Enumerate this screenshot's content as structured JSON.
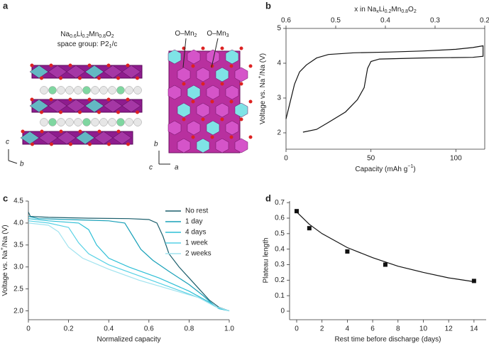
{
  "panel_a": {
    "label": "a",
    "formula": [
      {
        "t": "Na"
      },
      {
        "sub": "0.6"
      },
      {
        "t": "Li"
      },
      {
        "sub": "0.2"
      },
      {
        "t": "Mn"
      },
      {
        "sub": "0.8"
      },
      {
        "t": "O"
      },
      {
        "sub": "2"
      }
    ],
    "space_group": [
      {
        "t": "space group: P2"
      },
      {
        "sub": "1"
      },
      {
        "t": "/c"
      }
    ],
    "sites": [
      [
        {
          "t": "O–Mn"
        },
        {
          "sub": "2"
        }
      ],
      [
        {
          "t": "O–Mn"
        },
        {
          "sub": "3"
        }
      ]
    ],
    "axes_left": [
      "c",
      "b"
    ],
    "axes_right": [
      "b",
      "c",
      "a"
    ]
  },
  "chart_data": [
    {
      "type": "line",
      "label": "b",
      "xlabel": [
        {
          "t": "Capacity (mAh g"
        },
        {
          "sup": "−1"
        },
        {
          "t": ")"
        }
      ],
      "ylabel": [
        {
          "t": "Voltage vs. Na"
        },
        {
          "sup": "+"
        },
        {
          "t": "/Na (V)"
        }
      ],
      "x2label": [
        {
          "t": "x in Na"
        },
        {
          "sub": "x"
        },
        {
          "t": "Li"
        },
        {
          "sub": "0.2"
        },
        {
          "t": "Mn"
        },
        {
          "sub": "0.8"
        },
        {
          "t": "O"
        },
        {
          "sub": "2"
        }
      ],
      "xlim": [
        0,
        117
      ],
      "xticks": [
        0,
        50,
        100
      ],
      "ylim": [
        1.53,
        5
      ],
      "yticks": [
        2,
        3,
        4,
        5
      ],
      "x2lim": [
        0.6,
        0.2
      ],
      "x2ticks": [
        0.6,
        0.5,
        0.4,
        0.3,
        0.2
      ],
      "box": true,
      "series": [
        {
          "color": "#111111",
          "x": [
            0,
            2,
            5,
            8,
            12,
            18,
            25,
            40,
            60,
            80,
            100,
            110,
            116,
            116,
            110,
            80,
            55,
            50,
            48,
            46,
            42,
            35,
            25,
            18,
            10
          ],
          "values": [
            2.4,
            2.8,
            3.4,
            3.75,
            3.95,
            4.15,
            4.25,
            4.3,
            4.32,
            4.35,
            4.4,
            4.45,
            4.5,
            4.2,
            4.17,
            4.15,
            4.12,
            4.05,
            3.85,
            3.3,
            2.95,
            2.6,
            2.3,
            2.1,
            2.02
          ]
        }
      ]
    },
    {
      "type": "line",
      "label": "c",
      "xlabel": "Normalized capacity",
      "ylabel": [
        {
          "t": "Voltage vs. Na"
        },
        {
          "sup": "+"
        },
        {
          "t": "/Na (V)"
        }
      ],
      "xlim": [
        0,
        1
      ],
      "xticks": [
        {
          "value": 0,
          "label": "0"
        },
        {
          "value": 0.2,
          "label": "0.2"
        },
        {
          "value": 0.4,
          "label": "0.4"
        },
        {
          "value": 0.6,
          "label": "0.6"
        },
        {
          "value": 0.8,
          "label": "0.8"
        },
        {
          "value": 1,
          "label": "1.0"
        }
      ],
      "ylim": [
        1.8,
        4.5
      ],
      "yticks": [
        {
          "value": 2,
          "label": "2.0"
        },
        {
          "value": 2.5,
          "label": "2.5"
        },
        {
          "value": 3,
          "label": "3.0"
        },
        {
          "value": 3.5,
          "label": "3.5"
        },
        {
          "value": 4,
          "label": "4.0"
        },
        {
          "value": 4.5,
          "label": "4.5"
        }
      ],
      "legend": "upper right",
      "series": [
        {
          "name": "No rest",
          "color": "#1b5e6c",
          "x": [
            0,
            0.01,
            0.1,
            0.3,
            0.5,
            0.6,
            0.64,
            0.67,
            0.7,
            0.75,
            0.8,
            0.85,
            0.9,
            0.95,
            1
          ],
          "values": [
            4.25,
            4.15,
            4.13,
            4.11,
            4.1,
            4.08,
            4.0,
            3.7,
            3.3,
            3.0,
            2.75,
            2.5,
            2.25,
            2.08,
            2.0
          ]
        },
        {
          "name": "1 day",
          "color": "#18a0b8",
          "x": [
            0,
            0.05,
            0.2,
            0.4,
            0.48,
            0.52,
            0.56,
            0.62,
            0.7,
            0.8,
            0.87,
            0.93,
            1
          ],
          "values": [
            4.15,
            4.1,
            4.08,
            4.05,
            4.0,
            3.7,
            3.4,
            3.15,
            2.9,
            2.6,
            2.35,
            2.1,
            2.0
          ]
        },
        {
          "name": "4 days",
          "color": "#2dbfd6",
          "x": [
            0,
            0.1,
            0.25,
            0.3,
            0.34,
            0.4,
            0.5,
            0.65,
            0.8,
            0.9,
            0.95,
            1
          ],
          "values": [
            4.1,
            4.05,
            4.0,
            3.85,
            3.5,
            3.2,
            3.0,
            2.75,
            2.45,
            2.2,
            2.05,
            2.0
          ]
        },
        {
          "name": "1 week",
          "color": "#56d1e5",
          "x": [
            0,
            0.1,
            0.2,
            0.25,
            0.3,
            0.4,
            0.55,
            0.7,
            0.85,
            0.93,
            1
          ],
          "values": [
            4.05,
            4.0,
            3.9,
            3.55,
            3.3,
            3.05,
            2.8,
            2.55,
            2.3,
            2.1,
            2.0
          ]
        },
        {
          "name": "2 weeks",
          "color": "#a0e3ef",
          "x": [
            0,
            0.1,
            0.15,
            0.2,
            0.27,
            0.4,
            0.55,
            0.7,
            0.85,
            0.93,
            1
          ],
          "values": [
            4.0,
            3.95,
            3.8,
            3.45,
            3.2,
            2.95,
            2.7,
            2.5,
            2.3,
            2.1,
            2.0
          ]
        }
      ]
    },
    {
      "type": "scatter",
      "label": "d",
      "xlabel": "Rest time before discharge (days)",
      "ylabel": "Plateau length",
      "xlim": [
        -0.56,
        14.96
      ],
      "xticks": [
        0,
        2,
        4,
        6,
        8,
        10,
        12,
        14
      ],
      "ylim": [
        -0.055,
        0.71
      ],
      "yticks": [
        0,
        0.1,
        0.2,
        0.3,
        0.4,
        0.5,
        0.6,
        0.7
      ],
      "series": [
        {
          "style": "line",
          "color": "#111111",
          "x": [
            0,
            1,
            2,
            4,
            6,
            8,
            10,
            12,
            14
          ],
          "values": [
            0.64,
            0.56,
            0.5,
            0.41,
            0.345,
            0.29,
            0.25,
            0.215,
            0.19
          ]
        },
        {
          "style": "markers",
          "color": "#111111",
          "x": [
            0,
            1,
            4,
            7,
            14
          ],
          "values": [
            0.645,
            0.535,
            0.385,
            0.3,
            0.195
          ]
        }
      ]
    }
  ]
}
